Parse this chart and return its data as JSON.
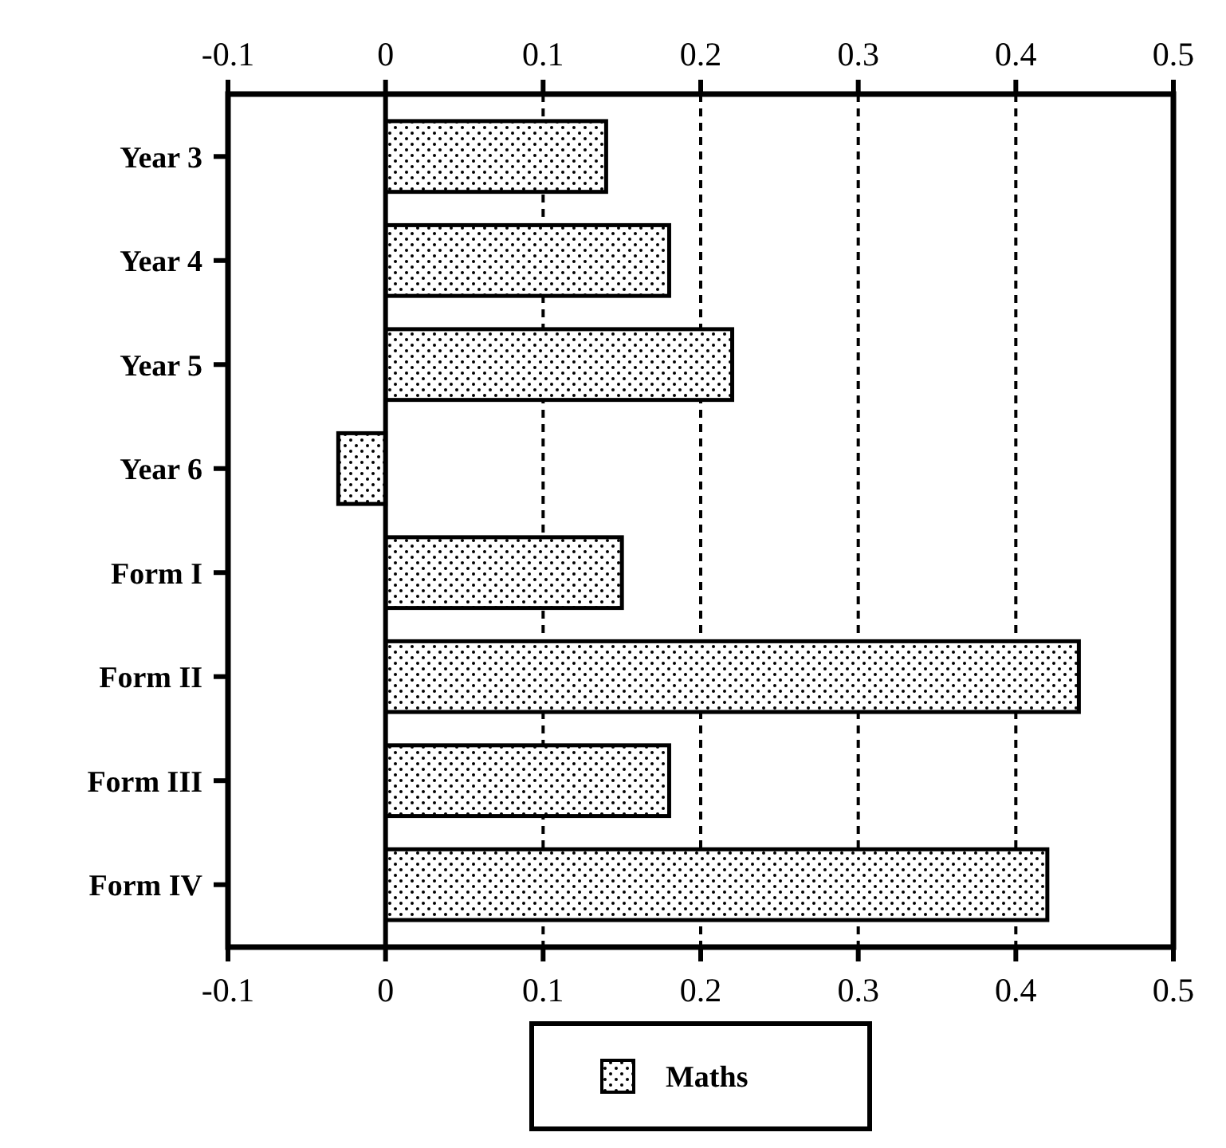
{
  "chart_data": {
    "type": "bar",
    "orientation": "horizontal",
    "categories": [
      "Year 3",
      "Year 4",
      "Year 5",
      "Year 6",
      "Form I",
      "Form II",
      "Form III",
      "Form IV"
    ],
    "series": [
      {
        "name": "Maths",
        "color": "#000000",
        "values": [
          0.14,
          0.18,
          0.22,
          -0.03,
          0.15,
          0.44,
          0.18,
          0.42
        ]
      }
    ],
    "xlim": [
      -0.1,
      0.5
    ],
    "xticks": [
      -0.1,
      0,
      0.1,
      0.2,
      0.3,
      0.4,
      0.5
    ],
    "x2lim": [
      -0.1,
      0.5
    ],
    "x2ticks": [
      -0.1,
      0,
      0.1,
      0.2,
      0.3,
      0.4,
      0.5
    ],
    "grid": "x",
    "legend": "bottom"
  }
}
